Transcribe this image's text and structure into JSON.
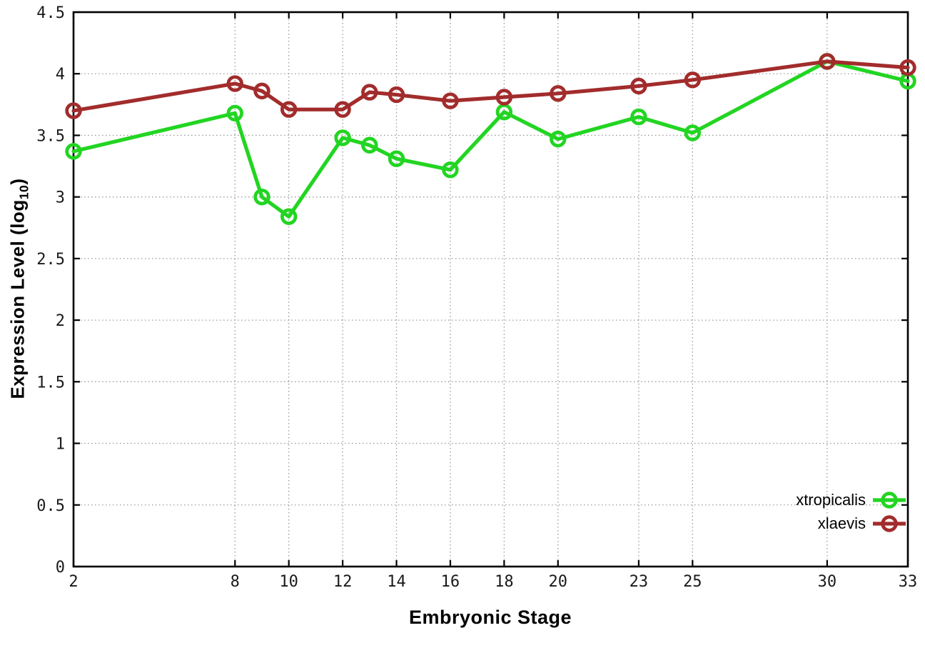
{
  "figure": {
    "background": "#ffffff",
    "border_color": "#000000",
    "grid_color": "#9a9a9a",
    "tick_label_color": "#1a1a1a"
  },
  "chart_data": {
    "type": "line",
    "title": "",
    "xlabel": "Embryonic Stage",
    "ylabel": {
      "pre": "Expression Level (log",
      "sub": "10",
      "post": ")"
    },
    "x": [
      2,
      8,
      9,
      10,
      12,
      13,
      14,
      16,
      18,
      20,
      23,
      25,
      30,
      33
    ],
    "series": [
      {
        "name": "xtropicalis",
        "color": "#22d522",
        "marker": "open-circle",
        "values": [
          3.37,
          3.68,
          3.0,
          2.84,
          3.48,
          3.42,
          3.31,
          3.22,
          3.69,
          3.47,
          3.65,
          3.52,
          4.1,
          3.94
        ]
      },
      {
        "name": "xlaevis",
        "color": "#a22c2c",
        "marker": "open-circle",
        "values": [
          3.7,
          3.92,
          3.86,
          3.71,
          3.71,
          3.85,
          3.83,
          3.78,
          3.81,
          3.84,
          3.9,
          3.95,
          4.1,
          4.05
        ]
      }
    ],
    "xticks": [
      2,
      8,
      10,
      12,
      14,
      16,
      18,
      20,
      23,
      25,
      30,
      33
    ],
    "yticks": [
      "0",
      "0.5",
      "1",
      "1.5",
      "2",
      "2.5",
      "3",
      "3.5",
      "4",
      "4.5"
    ],
    "xlim": [
      2,
      33
    ],
    "ylim": [
      0,
      4.5
    ],
    "grid": "dotted",
    "legend_position": "inside-bottom-right"
  }
}
